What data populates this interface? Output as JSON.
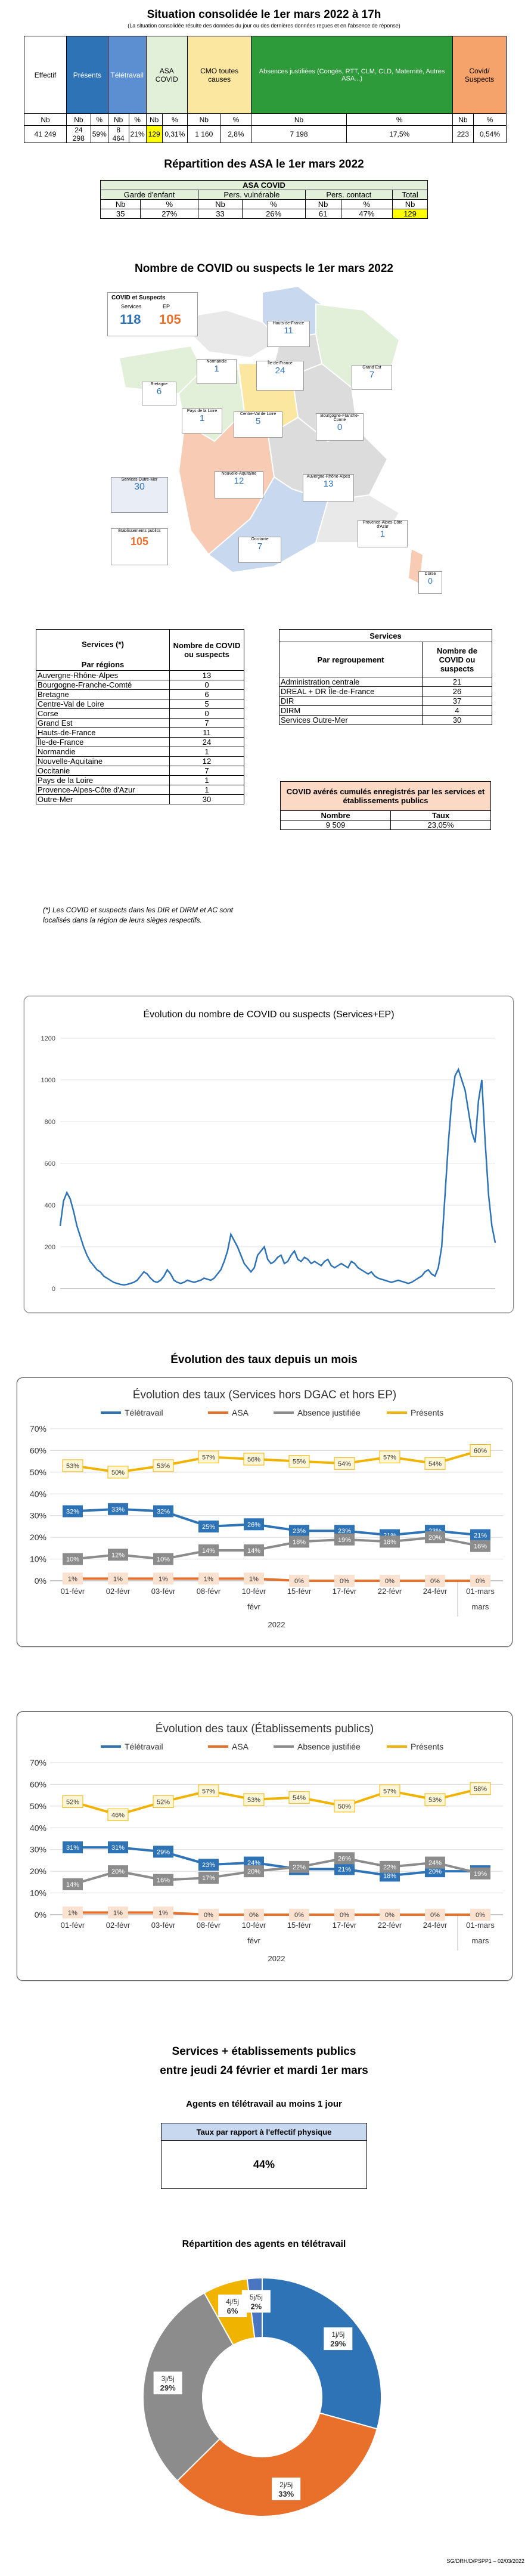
{
  "main_title": "Situation consolidée le 1er mars 2022 à 17h",
  "main_subtitle": "(La situation consolidée résulte des données du jour ou des dernières données reçues et en l'absence de réponse)",
  "summary": {
    "headers": [
      "Effectif",
      "Présents",
      "Télétravail",
      "ASA COVID",
      "CMO toutes causes",
      "Absences justifiées (Congés, RTT, CLM, CLD, Maternité, Autres ASA...)",
      "Covid/ Suspects"
    ],
    "sub": [
      "Nb",
      "Nb",
      "%",
      "Nb",
      "%",
      "Nb",
      "%",
      "Nb",
      "%",
      "Nb",
      "%",
      "Nb",
      "%"
    ],
    "values": [
      "41 249",
      "24 298",
      "59%",
      "8 464",
      "21%",
      "129",
      "0,31%",
      "1 160",
      "2,8%",
      "7 198",
      "17,5%",
      "223",
      "0,54%"
    ]
  },
  "asa_section_title": "Répartition des ASA le 1er mars 2022",
  "asa_table": {
    "title": "ASA COVID",
    "headers": [
      "Garde d'enfant",
      "Pers. vulnérable",
      "Pers. contact",
      "Total"
    ],
    "sub": [
      "Nb",
      "%",
      "Nb",
      "%",
      "Nb",
      "%",
      "Nb"
    ],
    "values": [
      "35",
      "27%",
      "33",
      "26%",
      "61",
      "47%",
      "129"
    ]
  },
  "map_section_title": "Nombre de COVID ou suspects le 1er mars 2022",
  "map_legend": {
    "title": "COVID et Suspects",
    "services_label": "Services",
    "ep_label": "EP",
    "services_value": "118",
    "ep_value": "105"
  },
  "map_boxes": [
    {
      "name": "Hauts-de-France",
      "value": "11"
    },
    {
      "name": "Normandie",
      "value": "1"
    },
    {
      "name": "Île-de-France",
      "value": "24"
    },
    {
      "name": "Grand Est",
      "value": "7"
    },
    {
      "name": "Bretagne",
      "value": "6"
    },
    {
      "name": "Pays de la Loire",
      "value": "1"
    },
    {
      "name": "Centre-Val de Loire",
      "value": "5"
    },
    {
      "name": "Bourgogne-Franche-Comté",
      "value": "0"
    },
    {
      "name": "Nouvelle-Aquitaine",
      "value": "12"
    },
    {
      "name": "Auvergne-Rhône-Alpes",
      "value": "13"
    },
    {
      "name": "Occitanie",
      "value": "7"
    },
    {
      "name": "Provence-Alpes-Côte d'Azur",
      "value": "1"
    },
    {
      "name": "Corse",
      "value": "0"
    },
    {
      "name": "Services Outre-Mer",
      "value": "30"
    },
    {
      "name": "Établissements publics",
      "value": "105"
    }
  ],
  "regions_table": {
    "title": "Services (*)",
    "col1": "Par régions",
    "col2": "Nombre de COVID ou suspects",
    "rows": [
      [
        "Auvergne-Rhône-Alpes",
        "13"
      ],
      [
        "Bourgogne-Franche-Comté",
        "0"
      ],
      [
        "Bretagne",
        "6"
      ],
      [
        "Centre-Val de Loire",
        "5"
      ],
      [
        "Corse",
        "0"
      ],
      [
        "Grand Est",
        "7"
      ],
      [
        "Hauts-de-France",
        "11"
      ],
      [
        "Île-de-France",
        "24"
      ],
      [
        "Normandie",
        "1"
      ],
      [
        "Nouvelle-Aquitaine",
        "12"
      ],
      [
        "Occitanie",
        "7"
      ],
      [
        "Pays de la Loire",
        "1"
      ],
      [
        "Provence-Alpes-Côte d'Azur",
        "1"
      ],
      [
        "Outre-Mer",
        "30"
      ]
    ],
    "footnote": "(*) Les COVID et suspects dans les DIR et DIRM et AC sont localisés dans la région de leurs sièges respectifs."
  },
  "grouping_table": {
    "title": "Services",
    "col1": "Par regroupement",
    "col2": "Nombre de COVID ou suspects",
    "rows": [
      [
        "Administration centrale",
        "21"
      ],
      [
        "DREAL + DR Île-de-France",
        "26"
      ],
      [
        "DIR",
        "37"
      ],
      [
        "DIRM",
        "4"
      ],
      [
        "Services Outre-Mer",
        "30"
      ]
    ]
  },
  "cumul_table": {
    "title": "COVID avérés cumulés enregistrés par les services et établissements publics",
    "col1": "Nombre",
    "col2": "Taux",
    "values": [
      "9 509",
      "23,05%"
    ]
  },
  "evolution_section": {
    "title": "Évolution du nombre de COVID ou suspects (Services+EP)"
  },
  "taux_section_title": "Évolution des taux depuis un mois",
  "chart_data": [
    {
      "type": "line",
      "title": "Évolution du nombre de COVID ou suspects (Services+EP)",
      "ylim": [
        0,
        1200
      ],
      "yticks": [
        0,
        200,
        400,
        600,
        800,
        1000,
        1200
      ],
      "series": [
        {
          "values": [
            300,
            420,
            460,
            430,
            370,
            300,
            250,
            200,
            160,
            130,
            110,
            90,
            80,
            60,
            50,
            40,
            30,
            25,
            20,
            18,
            20,
            25,
            30,
            40,
            60,
            80,
            70,
            50,
            35,
            30,
            40,
            60,
            90,
            70,
            40,
            30,
            25,
            30,
            40,
            35,
            30,
            35,
            40,
            50,
            45,
            40,
            50,
            70,
            90,
            130,
            180,
            260,
            230,
            200,
            160,
            120,
            100,
            80,
            100,
            160,
            180,
            200,
            140,
            120,
            130,
            150,
            160,
            120,
            130,
            160,
            180,
            140,
            130,
            150,
            140,
            120,
            130,
            120,
            110,
            130,
            140,
            110,
            100,
            110,
            120,
            110,
            100,
            130,
            120,
            100,
            90,
            80,
            70,
            80,
            60,
            50,
            45,
            40,
            35,
            30,
            35,
            40,
            35,
            30,
            25,
            30,
            40,
            50,
            60,
            80,
            90,
            70,
            60,
            100,
            200,
            450,
            700,
            900,
            1020,
            1050,
            1000,
            950,
            850,
            750,
            700,
            900,
            1000,
            700,
            450,
            300,
            220
          ]
        }
      ]
    },
    {
      "type": "line",
      "title": "Évolution des taux (Services hors DGAC et hors EP)",
      "categories": [
        "01-févr",
        "02-févr",
        "03-févr",
        "08-févr",
        "10-févr",
        "15-févr",
        "17-févr",
        "22-févr",
        "24-févr",
        "01-mars"
      ],
      "x_group_labels": [
        "févr",
        "mars"
      ],
      "x_year_label": "2022",
      "ylim": [
        0,
        70
      ],
      "yticks": [
        "0%",
        "10%",
        "20%",
        "30%",
        "40%",
        "50%",
        "60%",
        "70%"
      ],
      "series": [
        {
          "name": "Télétravail",
          "color": "#2f73b7",
          "values": [
            32,
            33,
            32,
            25,
            26,
            23,
            23,
            21,
            23,
            21
          ],
          "labels": [
            "32%",
            "33%",
            "32%",
            "25%",
            "26%",
            "23%",
            "23%",
            "21%",
            "23%",
            "21%"
          ]
        },
        {
          "name": "ASA",
          "color": "#e8702a",
          "values": [
            1,
            1,
            1,
            1,
            1,
            0,
            0,
            0,
            0,
            0
          ],
          "labels": [
            "1%",
            "1%",
            "1%",
            "1%",
            "1%",
            "0%",
            "0%",
            "0%",
            "0%",
            "0%"
          ]
        },
        {
          "name": "Absence justifiée",
          "color": "#8c8c8c",
          "values": [
            10,
            12,
            10,
            14,
            14,
            18,
            19,
            18,
            20,
            16
          ],
          "labels": [
            "10%",
            "12%",
            "10%",
            "14%",
            "14%",
            "18%",
            "19%",
            "18%",
            "20%",
            "16%"
          ]
        },
        {
          "name": "Présents",
          "color": "#f0b400",
          "values": [
            53,
            50,
            53,
            57,
            56,
            55,
            54,
            57,
            54,
            60
          ],
          "labels": [
            "53%",
            "50%",
            "53%",
            "57%",
            "56%",
            "55%",
            "54%",
            "57%",
            "54%",
            "60%"
          ]
        }
      ]
    },
    {
      "type": "line",
      "title": "Évolution des taux (Établissements publics)",
      "categories": [
        "01-févr",
        "02-févr",
        "03-févr",
        "08-févr",
        "10-févr",
        "15-févr",
        "17-févr",
        "22-févr",
        "24-févr",
        "01-mars"
      ],
      "x_group_labels": [
        "févr",
        "mars"
      ],
      "x_year_label": "2022",
      "ylim": [
        0,
        70
      ],
      "yticks": [
        "0%",
        "10%",
        "20%",
        "30%",
        "40%",
        "50%",
        "60%",
        "70%"
      ],
      "series": [
        {
          "name": "Télétravail",
          "color": "#2f73b7",
          "values": [
            31,
            31,
            29,
            23,
            24,
            21,
            21,
            18,
            20,
            20
          ],
          "labels": [
            "31%",
            "31%",
            "29%",
            "23%",
            "24%",
            "21%",
            "21%",
            "18%",
            "20%",
            "20%"
          ]
        },
        {
          "name": "ASA",
          "color": "#e8702a",
          "values": [
            1,
            1,
            1,
            0,
            0,
            0,
            0,
            0,
            0,
            0
          ],
          "labels": [
            "1%",
            "1%",
            "1%",
            "0%",
            "0%",
            "0%",
            "0%",
            "0%",
            "0%",
            "0%"
          ]
        },
        {
          "name": "Absence justifiée",
          "color": "#8c8c8c",
          "values": [
            14,
            20,
            16,
            17,
            20,
            22,
            26,
            22,
            24,
            19
          ],
          "labels": [
            "14%",
            "20%",
            "16%",
            "17%",
            "20%",
            "22%",
            "26%",
            "22%",
            "24%",
            "19%"
          ]
        },
        {
          "name": "Présents",
          "color": "#f0b400",
          "values": [
            52,
            46,
            52,
            57,
            53,
            54,
            50,
            57,
            53,
            58
          ],
          "labels": [
            "52%",
            "46%",
            "52%",
            "57%",
            "53%",
            "54%",
            "50%",
            "57%",
            "53%",
            "58%"
          ]
        }
      ]
    },
    {
      "type": "pie",
      "title": "Répartition des agents en télétravail",
      "slices": [
        {
          "label": "1j/5j",
          "value": 29,
          "pct": "29%",
          "color": "#2f73b7"
        },
        {
          "label": "2j/5j",
          "value": 33,
          "pct": "33%",
          "color": "#e8702a"
        },
        {
          "label": "3j/5j",
          "value": 29,
          "pct": "29%",
          "color": "#8c8c8c"
        },
        {
          "label": "4j/5j",
          "value": 6,
          "pct": "6%",
          "color": "#f0b400"
        },
        {
          "label": "5j/5j",
          "value": 2,
          "pct": "2%",
          "color": "#4a76c1"
        }
      ]
    }
  ],
  "period_title_line1": "Services + établissements publics",
  "period_title_line2": "entre jeudi 24 février et mardi 1er mars",
  "teletravail_box": {
    "title": "Agents en télétravail au moins 1 jour",
    "header": "Taux par rapport à l'effectif physique",
    "value": "44%"
  },
  "pie_title": "Répartition des agents en télétravail",
  "footer": "SG/DRH/D/PSPP1 – 02/03/2022"
}
